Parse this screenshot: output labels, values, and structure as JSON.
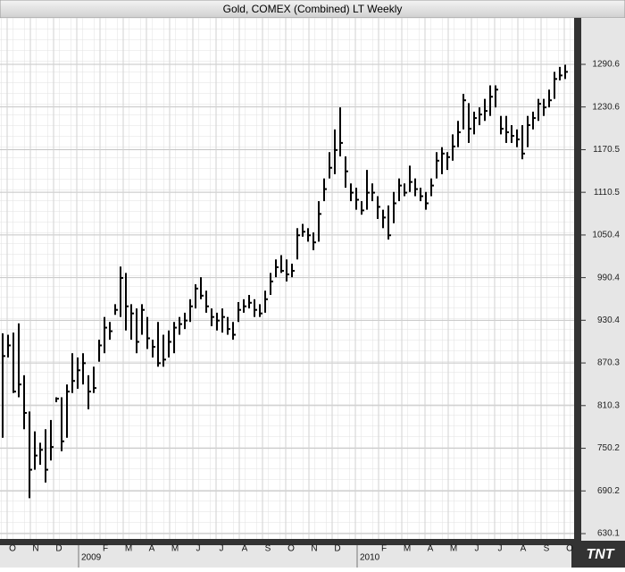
{
  "chart_data": {
    "type": "ohlc",
    "title": "Gold, COMEX (Combined) LT Weekly",
    "categories": [
      "O",
      "N",
      "D",
      null,
      "F",
      "M",
      "A",
      "M",
      "J",
      "J",
      "A",
      "S",
      "O",
      "N",
      "D",
      null,
      "F",
      "M",
      "A",
      "M",
      "J",
      "J",
      "A",
      "S",
      "O"
    ],
    "year_labels": [
      "2009",
      "2010"
    ],
    "logo": "TNT",
    "color": "#000000",
    "ylim": [
      622.6,
      1356.0
    ],
    "yticks": [
      630.1,
      690.2,
      750.2,
      810.3,
      870.3,
      930.4,
      990.4,
      1050.4,
      1110.5,
      1170.5,
      1230.6,
      1290.6
    ],
    "grid": true,
    "high": [
      912,
      910,
      913,
      926,
      853,
      802,
      774,
      758,
      777,
      790,
      822,
      822,
      840,
      884,
      878,
      884,
      853,
      865,
      903,
      935,
      928,
      953,
      1006,
      997,
      953,
      947,
      953,
      935,
      903,
      928,
      910,
      916,
      928,
      935,
      941,
      960,
      981,
      991,
      972,
      947,
      941,
      947,
      935,
      928,
      956,
      960,
      966,
      960,
      953,
      972,
      997,
      1016,
      1022,
      1016,
      1010,
      1060,
      1066,
      1060,
      1054,
      1098,
      1130,
      1167,
      1199,
      1230,
      1161,
      1123,
      1117,
      1098,
      1142,
      1123,
      1105,
      1086,
      1092,
      1111,
      1130,
      1123,
      1148,
      1130,
      1117,
      1111,
      1130,
      1167,
      1174,
      1167,
      1192,
      1211,
      1249,
      1236,
      1224,
      1230,
      1242,
      1261,
      1261,
      1218,
      1218,
      1205,
      1199,
      1205,
      1218,
      1224,
      1242,
      1242,
      1255,
      1280,
      1287,
      1290
    ],
    "low": [
      765,
      878,
      828,
      822,
      777,
      680,
      720,
      727,
      702,
      733,
      815,
      746,
      765,
      828,
      834,
      840,
      805,
      828,
      872,
      884,
      903,
      938,
      935,
      916,
      903,
      884,
      910,
      890,
      878,
      865,
      865,
      878,
      884,
      910,
      918,
      928,
      947,
      960,
      941,
      922,
      916,
      913,
      910,
      903,
      928,
      941,
      947,
      935,
      935,
      941,
      966,
      991,
      997,
      985,
      991,
      1016,
      1048,
      1041,
      1029,
      1041,
      1098,
      1130,
      1136,
      1161,
      1117,
      1098,
      1086,
      1079,
      1086,
      1098,
      1073,
      1060,
      1044,
      1067,
      1098,
      1105,
      1111,
      1105,
      1098,
      1086,
      1105,
      1130,
      1136,
      1142,
      1155,
      1174,
      1199,
      1180,
      1192,
      1205,
      1211,
      1218,
      1230,
      1192,
      1180,
      1180,
      1174,
      1157,
      1174,
      1199,
      1211,
      1218,
      1230,
      1242,
      1268,
      1270
    ],
    "close": [
      880,
      895,
      830,
      840,
      800,
      720,
      740,
      748,
      720,
      752,
      820,
      760,
      830,
      845,
      860,
      870,
      830,
      835,
      895,
      920,
      915,
      945,
      990,
      950,
      940,
      900,
      945,
      905,
      893,
      870,
      875,
      900,
      920,
      925,
      930,
      950,
      975,
      965,
      950,
      935,
      930,
      935,
      918,
      910,
      945,
      950,
      955,
      945,
      940,
      960,
      985,
      1005,
      1000,
      995,
      1000,
      1050,
      1055,
      1050,
      1040,
      1080,
      1115,
      1145,
      1170,
      1180,
      1140,
      1110,
      1100,
      1085,
      1110,
      1110,
      1090,
      1075,
      1050,
      1095,
      1120,
      1110,
      1125,
      1115,
      1105,
      1095,
      1120,
      1155,
      1165,
      1160,
      1175,
      1195,
      1240,
      1200,
      1215,
      1220,
      1225,
      1245,
      1255,
      1200,
      1195,
      1190,
      1185,
      1165,
      1205,
      1215,
      1235,
      1230,
      1240,
      1270,
      1275,
      1280
    ]
  }
}
